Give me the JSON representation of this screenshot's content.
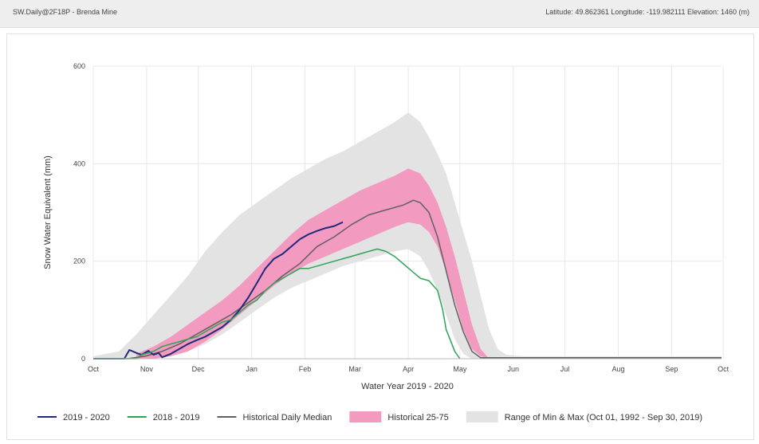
{
  "header": {
    "station": "SW.Daily@2F18P - Brenda Mine",
    "location": "Latitude: 49.862361 Longitude: -119.982111 Elevation: 1460 (m)"
  },
  "colors": {
    "series_2020": "#1f2a7a",
    "series_2019": "#2ea35a",
    "median": "#606060",
    "p25_75": "#f29ac0",
    "minmax": "#e3e3e3",
    "grid": "#e8e8e8"
  },
  "chart_data": {
    "type": "area",
    "xlabel": "Water Year 2019 - 2020",
    "ylabel": "Snow Water Equivalent (mm)",
    "xlim": [
      0,
      365
    ],
    "ylim": [
      0,
      600
    ],
    "yticks": [
      0,
      200,
      400,
      600
    ],
    "xticks": [
      {
        "day": 0,
        "label": "Oct"
      },
      {
        "day": 31,
        "label": "Nov"
      },
      {
        "day": 61,
        "label": "Dec"
      },
      {
        "day": 92,
        "label": "Jan"
      },
      {
        "day": 123,
        "label": "Feb"
      },
      {
        "day": 152,
        "label": "Mar"
      },
      {
        "day": 183,
        "label": "Apr"
      },
      {
        "day": 213,
        "label": "May"
      },
      {
        "day": 244,
        "label": "Jun"
      },
      {
        "day": 274,
        "label": "Jul"
      },
      {
        "day": 305,
        "label": "Aug"
      },
      {
        "day": 336,
        "label": "Sep"
      },
      {
        "day": 366,
        "label": "Oct"
      }
    ],
    "grid": true,
    "legend_position": "bottom",
    "series": [
      {
        "name": "Range of Min & Max (Oct 01, 1992 - Sep 30, 2019)",
        "kind": "band",
        "x": [
          0,
          15,
          25,
          35,
          45,
          55,
          65,
          75,
          85,
          95,
          105,
          115,
          125,
          135,
          145,
          155,
          165,
          175,
          183,
          190,
          195,
          200,
          205,
          210,
          215,
          220,
          225,
          230,
          235,
          240,
          250,
          300,
          365
        ],
        "lower": [
          0,
          0,
          0,
          0,
          5,
          15,
          30,
          50,
          75,
          100,
          125,
          145,
          160,
          175,
          190,
          200,
          210,
          220,
          225,
          210,
          180,
          140,
          90,
          40,
          10,
          0,
          0,
          0,
          0,
          0,
          0,
          0,
          0
        ],
        "upper": [
          5,
          15,
          50,
          90,
          130,
          170,
          220,
          260,
          295,
          320,
          345,
          370,
          390,
          410,
          425,
          445,
          465,
          485,
          505,
          485,
          455,
          420,
          380,
          320,
          260,
          200,
          130,
          60,
          20,
          8,
          5,
          5,
          5
        ]
      },
      {
        "name": "Historical 25-75",
        "kind": "band",
        "x": [
          25,
          35,
          45,
          55,
          65,
          75,
          85,
          95,
          105,
          115,
          125,
          135,
          145,
          155,
          165,
          175,
          183,
          190,
          195,
          200,
          205,
          210,
          215,
          220,
          225,
          230
        ],
        "lower": [
          0,
          0,
          5,
          15,
          35,
          60,
          90,
          120,
          150,
          175,
          195,
          210,
          225,
          240,
          255,
          270,
          280,
          275,
          260,
          230,
          180,
          120,
          60,
          20,
          5,
          0
        ],
        "upper": [
          10,
          25,
          45,
          70,
          95,
          120,
          150,
          185,
          220,
          255,
          285,
          305,
          325,
          345,
          360,
          375,
          390,
          380,
          355,
          320,
          270,
          210,
          140,
          70,
          20,
          0
        ]
      },
      {
        "name": "Historical Daily Median",
        "kind": "line",
        "x": [
          0,
          20,
          30,
          40,
          50,
          60,
          70,
          80,
          90,
          100,
          110,
          120,
          130,
          140,
          150,
          160,
          170,
          180,
          186,
          190,
          195,
          200,
          205,
          210,
          215,
          220,
          225,
          230,
          240,
          300,
          365
        ],
        "y": [
          0,
          0,
          5,
          15,
          30,
          50,
          70,
          90,
          115,
          140,
          170,
          195,
          230,
          250,
          275,
          295,
          305,
          315,
          325,
          320,
          300,
          250,
          180,
          110,
          55,
          15,
          2,
          2,
          2,
          2,
          2
        ]
      },
      {
        "name": "2019 - 2020",
        "kind": "line",
        "x": [
          0,
          18,
          21,
          25,
          28,
          32,
          35,
          38,
          40,
          45,
          50,
          55,
          60,
          65,
          70,
          75,
          80,
          85,
          90,
          95,
          100,
          105,
          110,
          115,
          120,
          125,
          130,
          135,
          140,
          145
        ],
        "y": [
          0,
          0,
          18,
          12,
          8,
          16,
          8,
          12,
          3,
          10,
          20,
          30,
          38,
          45,
          55,
          65,
          80,
          100,
          125,
          155,
          185,
          205,
          215,
          230,
          245,
          255,
          262,
          268,
          272,
          280
        ]
      },
      {
        "name": "2018 - 2019",
        "kind": "line",
        "x": [
          0,
          25,
          28,
          30,
          35,
          40,
          45,
          50,
          55,
          60,
          65,
          70,
          75,
          80,
          85,
          90,
          95,
          100,
          105,
          110,
          115,
          120,
          125,
          130,
          135,
          140,
          145,
          150,
          155,
          160,
          165,
          170,
          175,
          180,
          185,
          190,
          195,
          200,
          203,
          205,
          210,
          213
        ],
        "y": [
          0,
          0,
          8,
          10,
          15,
          25,
          30,
          35,
          40,
          45,
          55,
          65,
          75,
          80,
          95,
          110,
          120,
          140,
          155,
          165,
          175,
          185,
          185,
          190,
          195,
          200,
          205,
          210,
          215,
          220,
          225,
          220,
          210,
          195,
          180,
          165,
          160,
          140,
          100,
          60,
          15,
          0
        ]
      }
    ],
    "legend": [
      {
        "label": "2019 - 2020",
        "type": "line",
        "color": "#1f2a7a"
      },
      {
        "label": "2018 - 2019",
        "type": "line",
        "color": "#2ea35a"
      },
      {
        "label": "Historical Daily Median",
        "type": "line",
        "color": "#606060"
      },
      {
        "label": "Historical 25-75",
        "type": "box",
        "color": "#f29ac0"
      },
      {
        "label": "Range of Min & Max (Oct 01, 1992 - Sep 30, 2019)",
        "type": "box",
        "color": "#e3e3e3"
      }
    ]
  }
}
